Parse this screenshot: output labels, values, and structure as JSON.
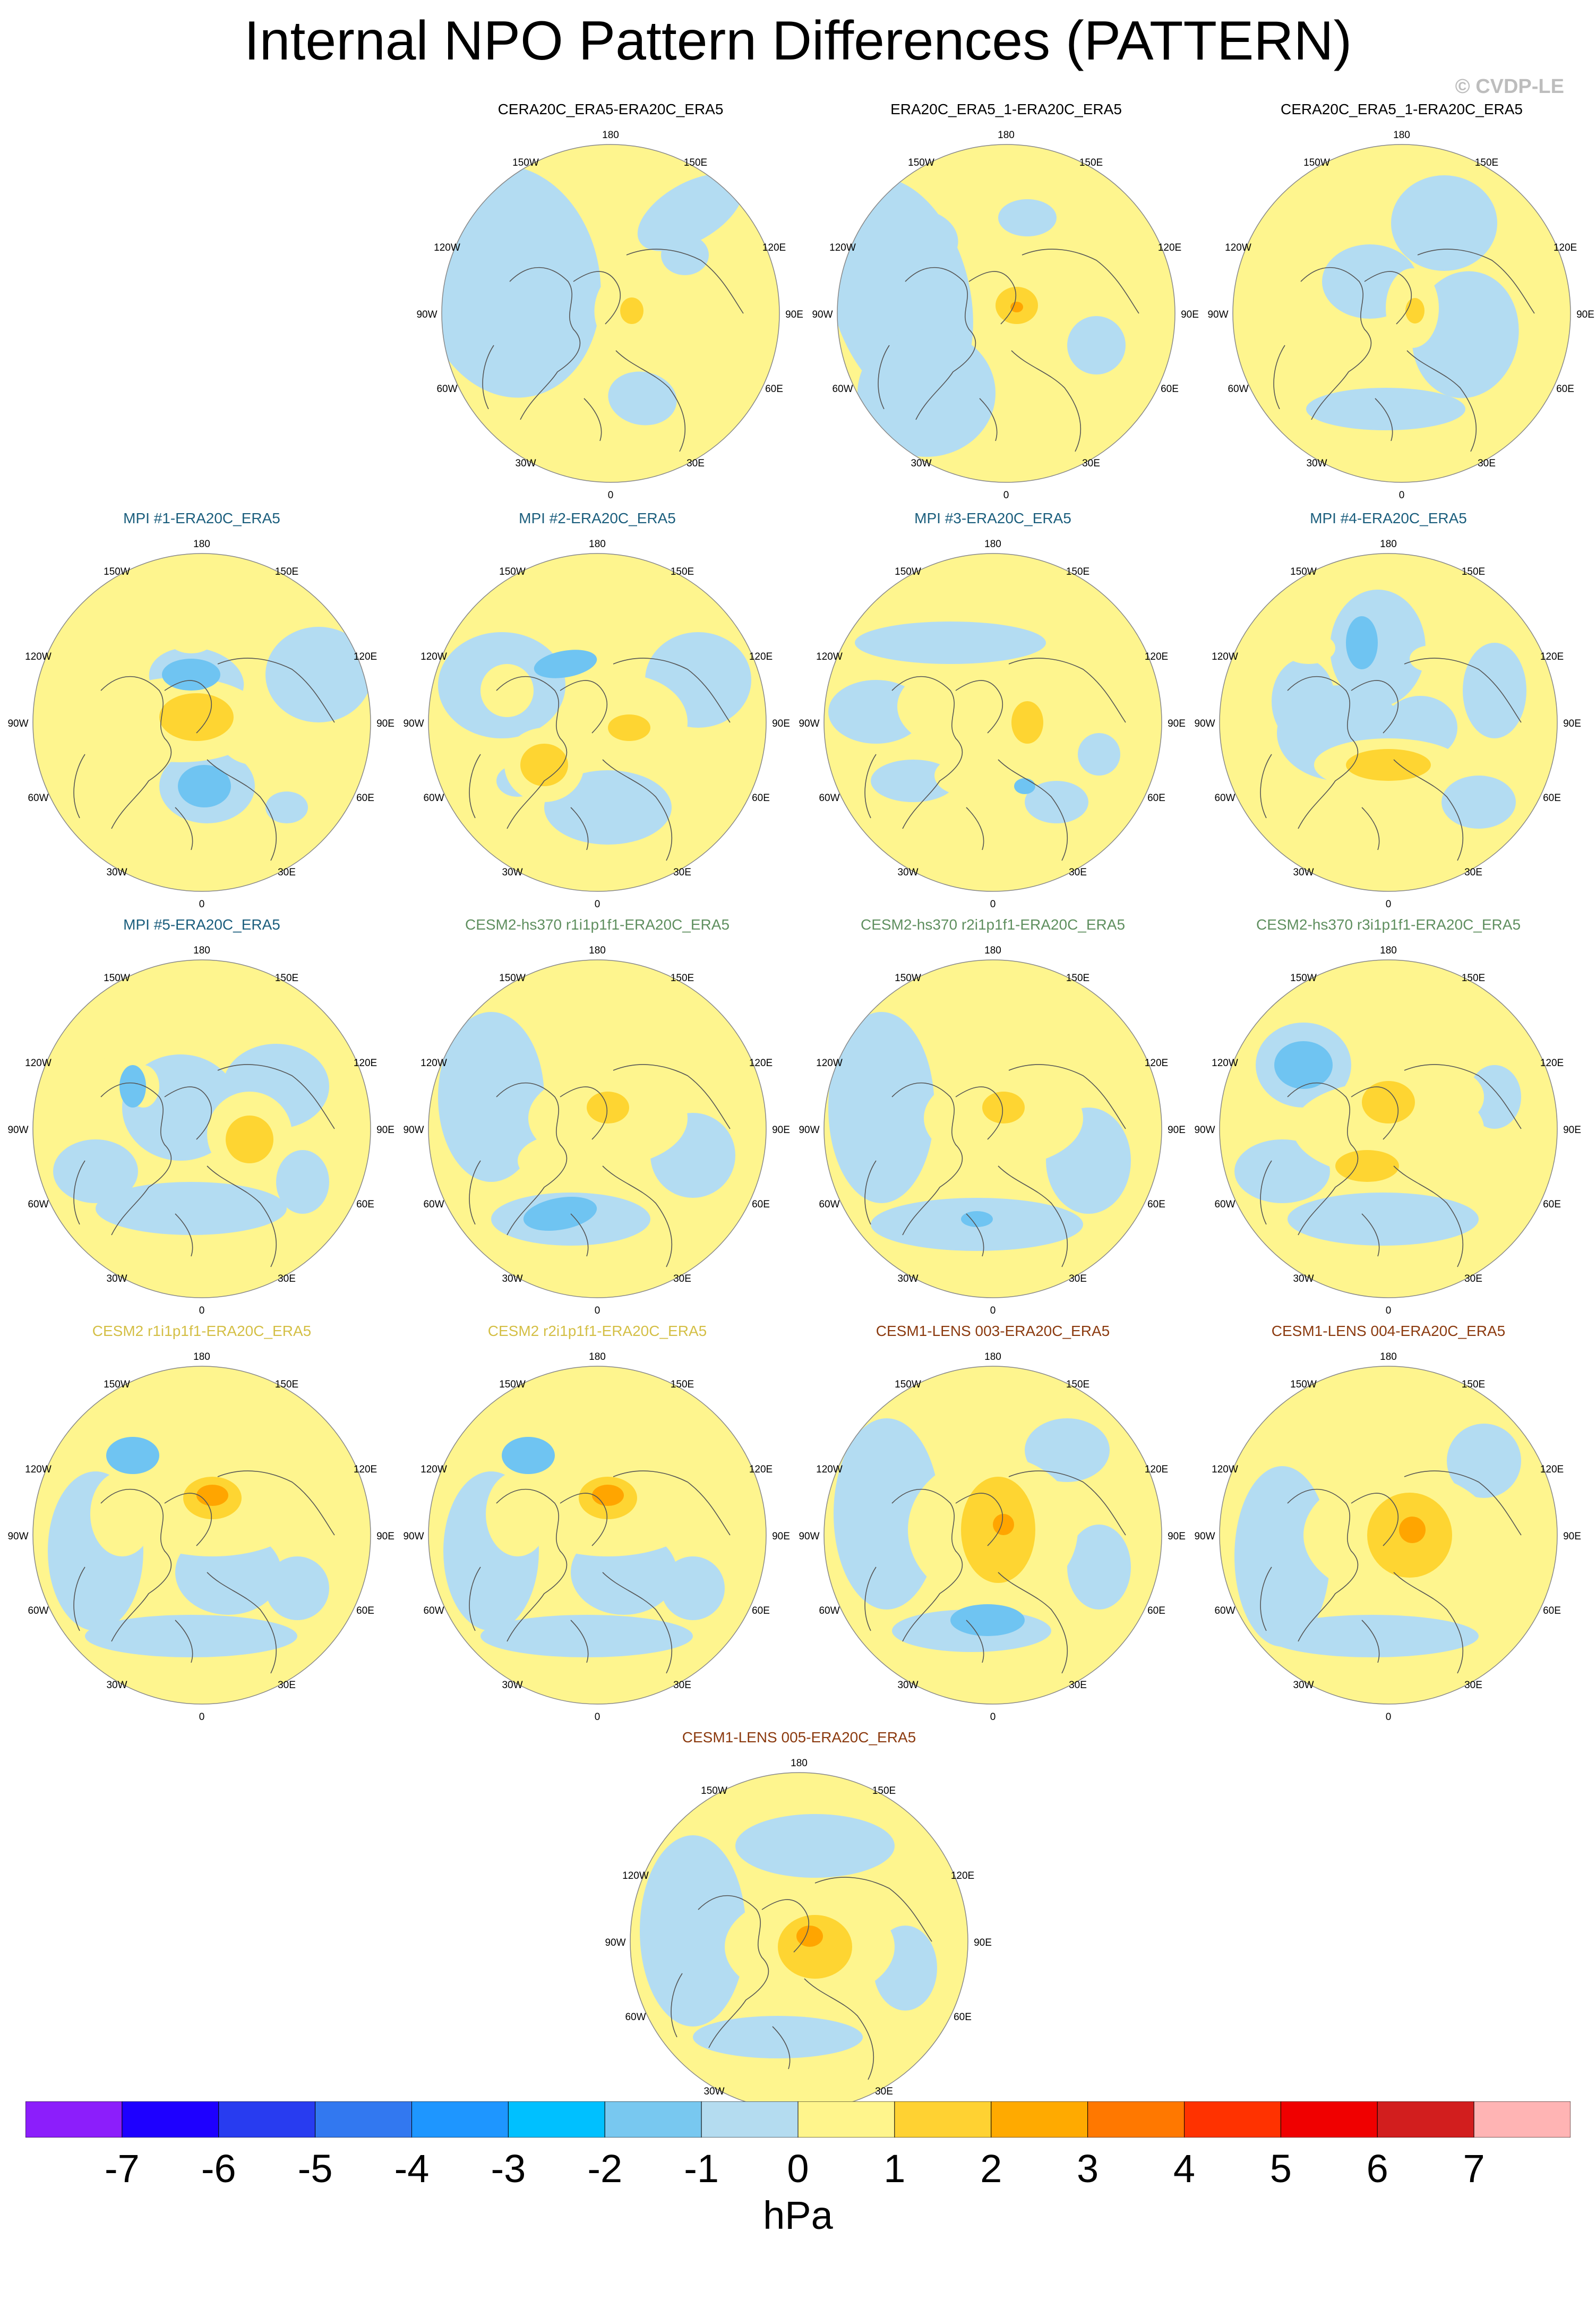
{
  "title": "Internal NPO Pattern Differences (PATTERN)",
  "credit": "© CVDP-LE",
  "lon_labels": {
    "top": "180",
    "tl": "150W",
    "tr": "150E",
    "ul": "120W",
    "ur": "120E",
    "l": "90W",
    "r": "90E",
    "ll": "60W",
    "lr": "60E",
    "bl": "30W",
    "br": "30E",
    "bottom": "0"
  },
  "colors": {
    "lev_neg1": "#b3dcf2",
    "lev_neg2": "#6fc4f2",
    "lev_neg3": "#00bff8",
    "lev_pos1": "#fef58e",
    "lev_pos2": "#fed532",
    "lev_pos3": "#ffa500",
    "coast": "#555555"
  },
  "panels": [
    {
      "label": "CERA20C_ERA5-ERA20C_ERA5",
      "color": "#000000",
      "neg": [
        [
          -190,
          -60,
          170,
          220,
          -10
        ],
        [
          150,
          -190,
          110,
          55,
          -30
        ],
        [
          60,
          160,
          65,
          50,
          10
        ],
        [
          140,
          -110,
          45,
          38,
          0
        ]
      ],
      "pos": [
        [
          30,
          -10,
          60,
          75,
          10
        ]
      ],
      "pos2": [
        [
          40,
          -5,
          22,
          25,
          0
        ]
      ],
      "neg2": []
    },
    {
      "label": "ERA20C_ERA5_1-ERA20C_ERA5",
      "color": "#000000",
      "neg": [
        [
          -200,
          -40,
          130,
          220,
          -15
        ],
        [
          -150,
          150,
          130,
          120,
          0
        ],
        [
          40,
          -180,
          55,
          35,
          0
        ],
        [
          170,
          60,
          55,
          55,
          10
        ],
        [
          -160,
          -140,
          70,
          55,
          10
        ]
      ],
      "pos": [
        [
          30,
          -10,
          85,
          75,
          10
        ]
      ],
      "pos2": [
        [
          20,
          -15,
          40,
          35,
          0
        ]
      ],
      "neg2": [],
      "pos3": [
        [
          20,
          -12,
          12,
          10,
          0
        ]
      ]
    },
    {
      "label": "CERA20C_ERA5_1-ERA20C_ERA5",
      "color": "#000000",
      "neg": [
        [
          80,
          -170,
          100,
          90,
          0
        ],
        [
          -60,
          -60,
          90,
          70,
          0
        ],
        [
          120,
          40,
          100,
          120,
          10
        ],
        [
          -30,
          180,
          150,
          40,
          0
        ]
      ],
      "pos": [
        [
          20,
          -10,
          50,
          75,
          0
        ]
      ],
      "pos2": [
        [
          25,
          -5,
          18,
          24,
          0
        ]
      ],
      "neg2": []
    },
    {
      "label": "MPI #1-ERA20C_ERA5",
      "color": "#1b5e7d",
      "neg": [
        [
          220,
          -90,
          100,
          90,
          0
        ],
        [
          -10,
          -80,
          90,
          60,
          10
        ],
        [
          10,
          120,
          90,
          70,
          0
        ],
        [
          160,
          160,
          40,
          30,
          0
        ]
      ],
      "pos": [
        [
          -40,
          -5,
          160,
          80,
          0
        ],
        [
          100,
          20,
          70,
          60,
          0
        ],
        [
          -170,
          60,
          30,
          45,
          0
        ],
        [
          -20,
          -160,
          45,
          30,
          0
        ]
      ],
      "pos2": [
        [
          -10,
          -10,
          70,
          45,
          0
        ]
      ],
      "neg2": [
        [
          -20,
          -90,
          55,
          30,
          0
        ],
        [
          5,
          120,
          50,
          40,
          0
        ]
      ]
    },
    {
      "label": "MPI #2-ERA20C_ERA5",
      "color": "#1b5e7d",
      "neg": [
        [
          -180,
          -70,
          120,
          100,
          0
        ],
        [
          190,
          -80,
          100,
          90,
          0
        ],
        [
          20,
          160,
          120,
          70,
          0
        ],
        [
          -150,
          110,
          40,
          30,
          0
        ]
      ],
      "pos": [
        [
          50,
          0,
          120,
          90,
          0
        ],
        [
          -100,
          80,
          75,
          70,
          0
        ],
        [
          -170,
          -60,
          50,
          50,
          0
        ]
      ],
      "pos2": [
        [
          -100,
          80,
          45,
          40,
          0
        ],
        [
          60,
          10,
          40,
          25,
          0
        ]
      ],
      "neg2": [
        [
          -60,
          -110,
          60,
          25,
          -10
        ]
      ]
    },
    {
      "label": "MPI #3-ERA20C_ERA5",
      "color": "#1b5e7d",
      "neg": [
        [
          -80,
          -150,
          180,
          40,
          0
        ],
        [
          -220,
          -20,
          90,
          60,
          0
        ],
        [
          -150,
          110,
          80,
          40,
          0
        ],
        [
          120,
          150,
          60,
          40,
          0
        ],
        [
          200,
          60,
          40,
          40,
          0
        ]
      ],
      "pos": [
        [
          70,
          -5,
          90,
          75,
          0
        ],
        [
          -60,
          -30,
          120,
          80,
          0
        ],
        [
          -40,
          100,
          70,
          40,
          0
        ]
      ],
      "pos2": [
        [
          65,
          0,
          30,
          40,
          0
        ]
      ],
      "neg2": [
        [
          60,
          120,
          20,
          15,
          0
        ]
      ]
    },
    {
      "label": "MPI #4-ERA20C_ERA5",
      "color": "#1b5e7d",
      "neg": [
        [
          -20,
          -140,
          90,
          110,
          0
        ],
        [
          -90,
          20,
          120,
          90,
          0
        ],
        [
          60,
          10,
          70,
          60,
          0
        ],
        [
          200,
          -60,
          60,
          90,
          0
        ],
        [
          170,
          150,
          70,
          50,
          0
        ],
        [
          -160,
          -40,
          60,
          80,
          0
        ]
      ],
      "pos": [
        [
          0,
          80,
          140,
          50,
          0
        ],
        [
          -150,
          -140,
          50,
          30,
          0
        ],
        [
          80,
          -120,
          40,
          25,
          0
        ]
      ],
      "pos2": [
        [
          0,
          80,
          80,
          30,
          0
        ]
      ],
      "neg2": [
        [
          -50,
          -150,
          30,
          50,
          0
        ]
      ]
    },
    {
      "label": "MPI #5-ERA20C_ERA5",
      "color": "#1b5e7d",
      "neg": [
        [
          -40,
          -40,
          110,
          100,
          0
        ],
        [
          140,
          -80,
          100,
          80,
          0
        ],
        [
          -200,
          80,
          80,
          60,
          0
        ],
        [
          -20,
          150,
          180,
          50,
          0
        ],
        [
          190,
          100,
          50,
          60,
          0
        ]
      ],
      "pos": [
        [
          90,
          10,
          80,
          80,
          0
        ],
        [
          -160,
          -100,
          40,
          40,
          0
        ],
        [
          -110,
          -80,
          30,
          40,
          0
        ]
      ],
      "pos2": [
        [
          90,
          20,
          45,
          45,
          0
        ]
      ],
      "neg2": [
        [
          -130,
          -80,
          25,
          40,
          0
        ]
      ]
    },
    {
      "label": "CESM2-hs370 r1i1p1f1-ERA20C_ERA5",
      "color": "#5f8f5f",
      "neg": [
        [
          -200,
          -60,
          100,
          160,
          0
        ],
        [
          180,
          50,
          80,
          80,
          0
        ],
        [
          -50,
          170,
          150,
          50,
          0
        ]
      ],
      "pos": [
        [
          20,
          -20,
          150,
          90,
          0
        ],
        [
          -60,
          60,
          90,
          50,
          0
        ]
      ],
      "pos2": [
        [
          20,
          -40,
          40,
          30,
          0
        ]
      ],
      "neg2": [
        [
          -70,
          160,
          70,
          30,
          -10
        ]
      ]
    },
    {
      "label": "CESM2-hs370 r2i1p1f1-ERA20C_ERA5",
      "color": "#5f8f5f",
      "neg": [
        [
          -210,
          -40,
          100,
          180,
          0
        ],
        [
          180,
          60,
          80,
          100,
          0
        ],
        [
          -30,
          180,
          200,
          50,
          0
        ]
      ],
      "pos": [
        [
          20,
          -20,
          150,
          90,
          0
        ],
        [
          -40,
          50,
          70,
          40,
          0
        ]
      ],
      "pos2": [
        [
          20,
          -40,
          40,
          30,
          0
        ]
      ],
      "neg2": [
        [
          -30,
          170,
          30,
          15,
          0
        ]
      ]
    },
    {
      "label": "CESM2-hs370 r3i1p1f1-ERA20C_ERA5",
      "color": "#5f8f5f",
      "neg": [
        [
          -160,
          -120,
          90,
          80,
          0
        ],
        [
          -200,
          80,
          90,
          60,
          0
        ],
        [
          -10,
          170,
          180,
          50,
          0
        ],
        [
          200,
          -60,
          50,
          60,
          0
        ]
      ],
      "pos": [
        [
          0,
          0,
          180,
          90,
          0
        ],
        [
          120,
          -60,
          60,
          50,
          0
        ]
      ],
      "pos2": [
        [
          0,
          -50,
          50,
          40,
          0
        ],
        [
          -40,
          70,
          60,
          30,
          0
        ]
      ],
      "neg2": [
        [
          -160,
          -120,
          55,
          45,
          0
        ]
      ]
    },
    {
      "label": "CESM2 r1i1p1f1-ERA20C_ERA5",
      "color": "#d4bf45",
      "neg": [
        [
          -200,
          30,
          90,
          150,
          0
        ],
        [
          50,
          70,
          100,
          80,
          0
        ],
        [
          -20,
          190,
          200,
          40,
          0
        ],
        [
          180,
          100,
          60,
          60,
          0
        ]
      ],
      "pos": [
        [
          20,
          -40,
          170,
          80,
          0
        ],
        [
          -150,
          -40,
          60,
          80,
          0
        ]
      ],
      "pos2": [
        [
          20,
          -70,
          55,
          40,
          0
        ]
      ],
      "neg2": [
        [
          -130,
          -150,
          50,
          35,
          0
        ]
      ],
      "pos3": [
        [
          20,
          -75,
          30,
          20,
          0
        ]
      ]
    },
    {
      "label": "CESM2 r2i1p1f1-ERA20C_ERA5",
      "color": "#d4bf45",
      "neg": [
        [
          -200,
          30,
          90,
          150,
          0
        ],
        [
          50,
          70,
          100,
          80,
          0
        ],
        [
          -20,
          190,
          200,
          40,
          0
        ],
        [
          180,
          100,
          60,
          60,
          0
        ]
      ],
      "pos": [
        [
          20,
          -40,
          170,
          80,
          0
        ],
        [
          -150,
          -40,
          60,
          80,
          0
        ]
      ],
      "pos2": [
        [
          20,
          -70,
          55,
          40,
          0
        ]
      ],
      "neg2": [
        [
          -130,
          -150,
          50,
          35,
          0
        ]
      ],
      "pos3": [
        [
          20,
          -75,
          30,
          20,
          0
        ]
      ]
    },
    {
      "label": "CESM1-LENS 003-ERA20C_ERA5",
      "color": "#8b3a0f",
      "neg": [
        [
          -200,
          -40,
          100,
          180,
          0
        ],
        [
          140,
          -160,
          80,
          60,
          0
        ],
        [
          200,
          60,
          60,
          80,
          0
        ],
        [
          -40,
          180,
          150,
          40,
          0
        ]
      ],
      "pos": [
        [
          0,
          -10,
          160,
          140,
          0
        ]
      ],
      "pos2": [
        [
          10,
          -10,
          70,
          100,
          0
        ]
      ],
      "neg2": [
        [
          -10,
          160,
          70,
          30,
          0
        ]
      ],
      "pos3": [
        [
          20,
          -20,
          20,
          20,
          0
        ]
      ]
    },
    {
      "label": "CESM1-LENS 004-ERA20C_ERA5",
      "color": "#8b3a0f",
      "neg": [
        [
          -200,
          40,
          90,
          170,
          0
        ],
        [
          180,
          -140,
          70,
          70,
          0
        ],
        [
          -30,
          190,
          200,
          40,
          0
        ]
      ],
      "pos": [
        [
          20,
          0,
          180,
          120,
          0
        ]
      ],
      "pos2": [
        [
          40,
          0,
          80,
          80,
          0
        ]
      ],
      "neg2": [],
      "pos3": [
        [
          45,
          -10,
          25,
          25,
          0
        ]
      ]
    },
    {
      "label": "CESM1-LENS 005-ERA20C_ERA5",
      "color": "#8b3a0f",
      "neg": [
        [
          -200,
          -20,
          100,
          180,
          0
        ],
        [
          30,
          -180,
          150,
          60,
          0
        ],
        [
          200,
          50,
          60,
          80,
          0
        ],
        [
          -40,
          180,
          160,
          40,
          0
        ]
      ],
      "pos": [
        [
          20,
          10,
          160,
          100,
          0
        ]
      ],
      "pos2": [
        [
          30,
          10,
          70,
          60,
          0
        ]
      ],
      "neg2": [],
      "pos3": [
        [
          20,
          -10,
          25,
          20,
          0
        ]
      ]
    }
  ],
  "colorbar": {
    "colors": [
      "#8c1efb",
      "#1e00ff",
      "#283cf0",
      "#3278f0",
      "#1e96ff",
      "#00c0ff",
      "#78c8f0",
      "#b4dcf0",
      "#fff58c",
      "#ffd232",
      "#ffaa00",
      "#ff7800",
      "#ff3200",
      "#f00000",
      "#d21e1e",
      "#ffb4b4"
    ],
    "ticks": [
      "-7",
      "-6",
      "-5",
      "-4",
      "-3",
      "-2",
      "-1",
      "0",
      "1",
      "2",
      "3",
      "4",
      "5",
      "6",
      "7"
    ],
    "units": "hPa"
  }
}
